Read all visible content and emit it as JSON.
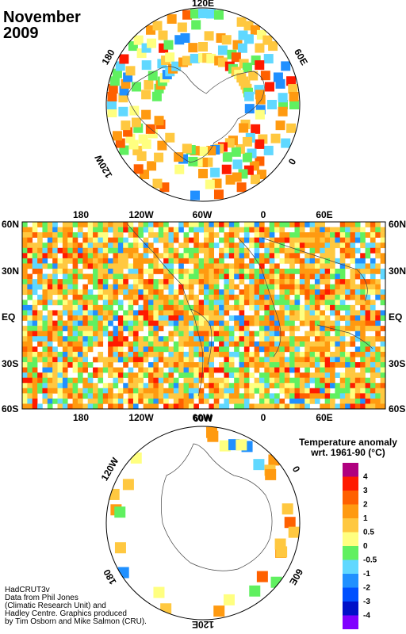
{
  "title": {
    "month": "November",
    "year": "2009"
  },
  "north_polar": {
    "lon_labels": [
      "120E",
      "60E",
      "0",
      "120W",
      "180"
    ]
  },
  "world_map": {
    "top_lon_labels": [
      "180",
      "120W",
      "60W",
      "0",
      "60E"
    ],
    "bottom_lon_labels": [
      "180",
      "120W",
      "60W",
      "0",
      "60E"
    ],
    "lat_labels_left": [
      "60N",
      "30N",
      "EQ",
      "30S",
      "60S"
    ],
    "lat_labels_right": [
      "60N",
      "30N",
      "EQ",
      "30S",
      "60S"
    ]
  },
  "south_polar": {
    "lon_labels": [
      "60W",
      "0",
      "60E",
      "120E",
      "180",
      "120W"
    ]
  },
  "legend": {
    "title_line1": "Temperature anomaly",
    "title_line2": "wrt. 1961-90  (°C)",
    "bins": [
      {
        "label": "4",
        "color": "#b0007f"
      },
      {
        "label": "3",
        "color": "#ff1a00"
      },
      {
        "label": "2",
        "color": "#ff6000"
      },
      {
        "label": "1",
        "color": "#ff9a10"
      },
      {
        "label": "0.5",
        "color": "#ffc840"
      },
      {
        "label": "0",
        "color": "#ffff80"
      },
      {
        "label": "-0.5",
        "color": "#60f060"
      },
      {
        "label": "-1",
        "color": "#60d8ff"
      },
      {
        "label": "-2",
        "color": "#2090ff"
      },
      {
        "label": "-3",
        "color": "#0050ff"
      },
      {
        "label": "-4",
        "color": "#0010c8"
      },
      {
        "label": "",
        "color": "#8000ff"
      }
    ]
  },
  "credit": {
    "line1": "HadCRUT3v",
    "line2": "Data from Phil Jones",
    "line3": "(Climatic Research Unit) and",
    "line4": "Hadley Centre.  Graphics produced",
    "line5": "by Tim Osborn and Mike Salmon (CRU)."
  }
}
